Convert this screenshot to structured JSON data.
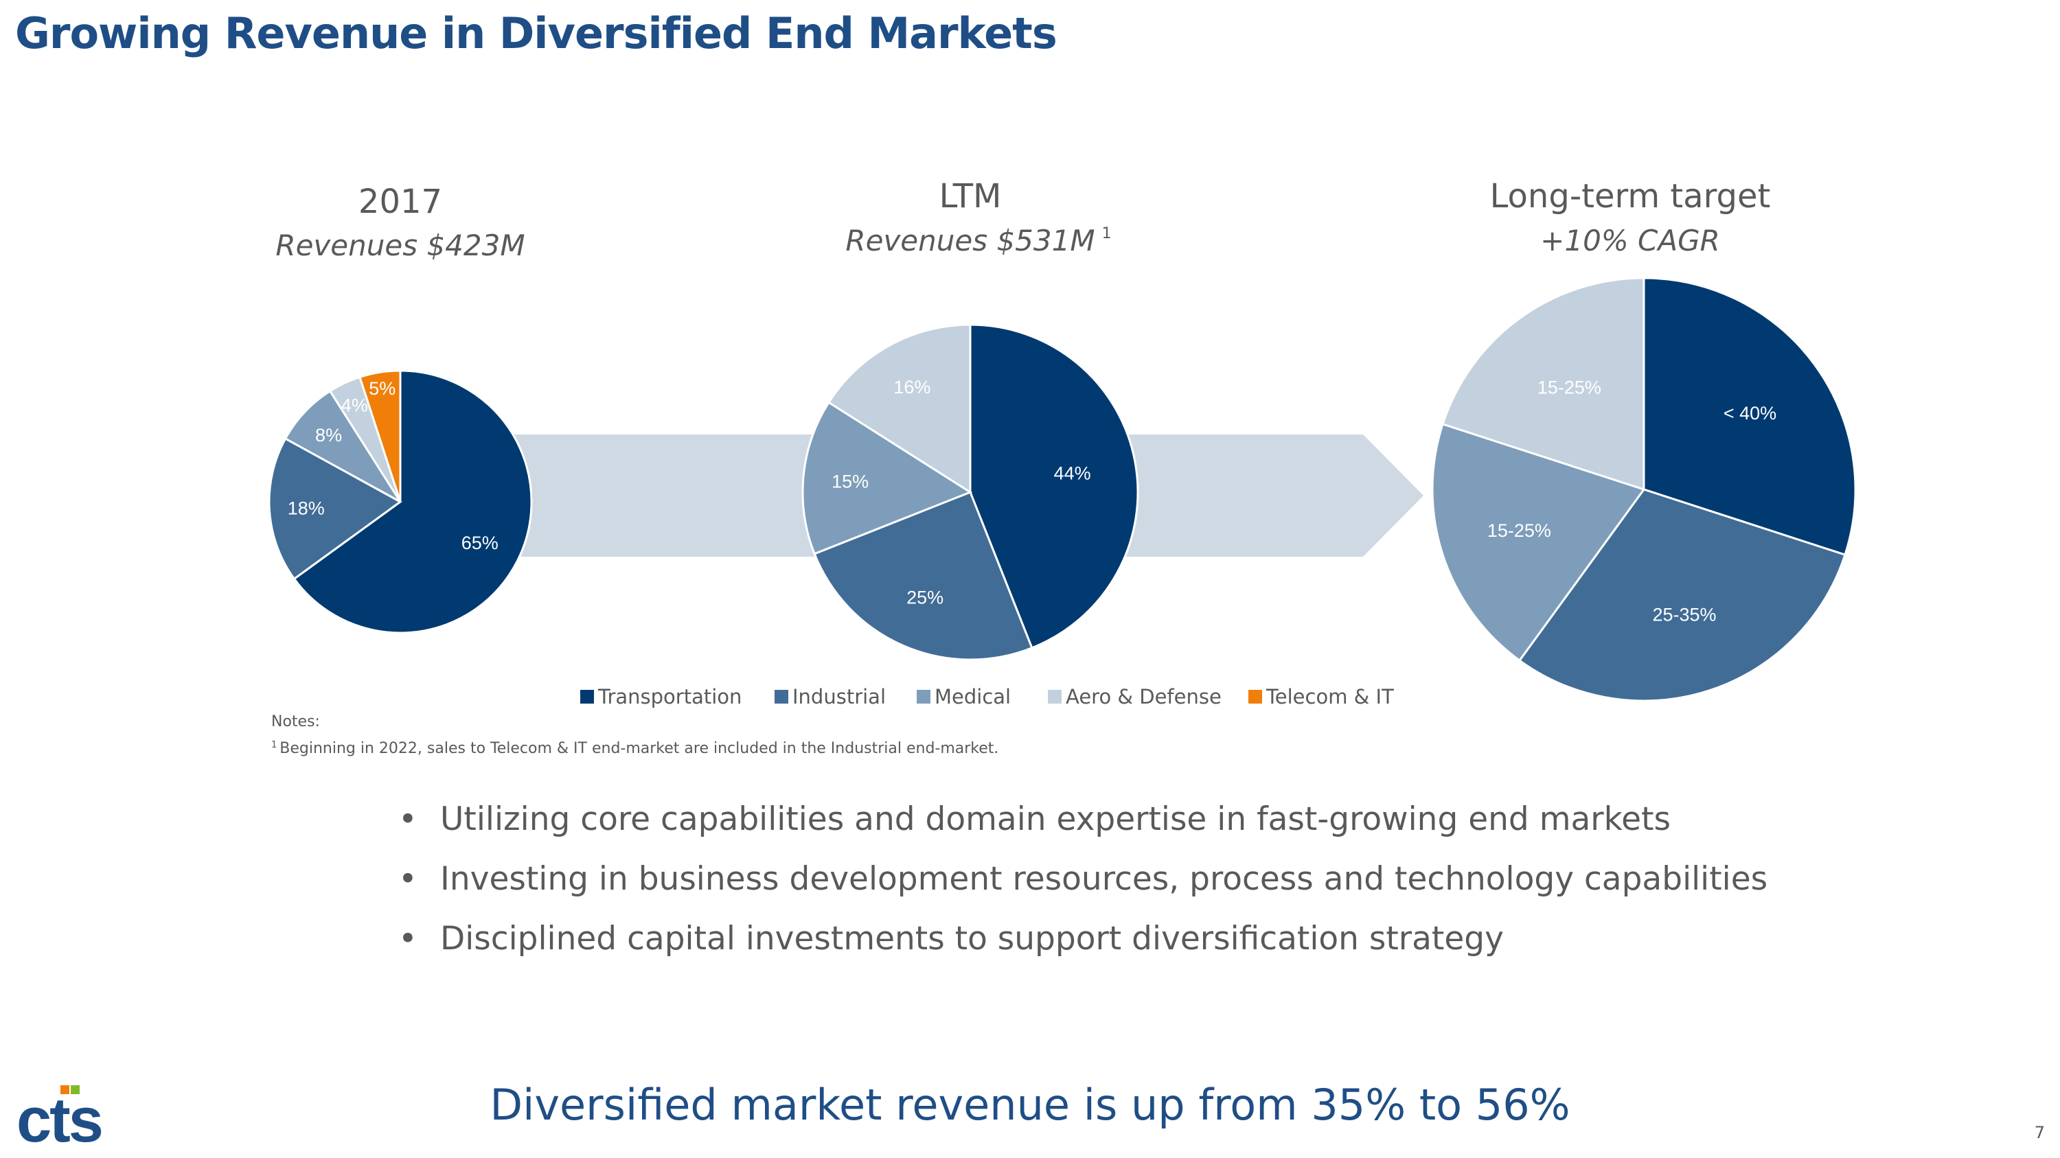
{
  "slide": {
    "title": "Growing Revenue in Diversified End Markets",
    "page_number": "7",
    "tagline": "Diversified market revenue is up from 35% to 56%",
    "logo_text": "cts"
  },
  "colors": {
    "Transportation": "#003a70",
    "Industrial": "#416c96",
    "Medical": "#7e9dba",
    "Aero & Defense": "#c3d1de",
    "Telecom & IT": "#f07f09",
    "title": "#1f4e86",
    "arrow": "#ced9e3"
  },
  "chart_data": [
    {
      "type": "pie",
      "title": "2017",
      "subtitle": "Revenues $423M",
      "subtitle_note": "",
      "categories": [
        "Transportation",
        "Industrial",
        "Medical",
        "Aero & Defense",
        "Telecom & IT"
      ],
      "values": [
        65,
        18,
        8,
        4,
        5
      ],
      "labels": [
        "65%",
        "18%",
        "8%",
        "4%",
        "5%"
      ]
    },
    {
      "type": "pie",
      "title": "LTM",
      "subtitle": "Revenues $531M",
      "subtitle_note": "1",
      "categories": [
        "Transportation",
        "Industrial",
        "Medical",
        "Aero & Defense"
      ],
      "values": [
        44,
        25,
        15,
        16
      ],
      "labels": [
        "44%",
        "25%",
        "15%",
        "16%"
      ]
    },
    {
      "type": "pie",
      "title": "Long-term target",
      "subtitle": "+10% CAGR",
      "subtitle_note": "",
      "categories": [
        "Transportation",
        "Industrial",
        "Medical",
        "Aero & Defense"
      ],
      "values": [
        30,
        30,
        20,
        20
      ],
      "labels": [
        "< 40%",
        "25-35%",
        "15-25%",
        "15-25%"
      ]
    }
  ],
  "legend": {
    "placement": "bottom",
    "items": [
      "Transportation",
      "Industrial",
      "Medical",
      "Aero & Defense",
      "Telecom & IT"
    ]
  },
  "notes": {
    "heading": "Notes:",
    "footnote_marker": "1",
    "footnote": "Beginning in 2022, sales to Telecom & IT end-market are included in the Industrial end-market."
  },
  "bullets": [
    "Utilizing core capabilities and domain expertise in fast-growing end markets",
    "Investing in business development resources, process and technology capabilities",
    "Disciplined capital investments to support diversification strategy"
  ]
}
